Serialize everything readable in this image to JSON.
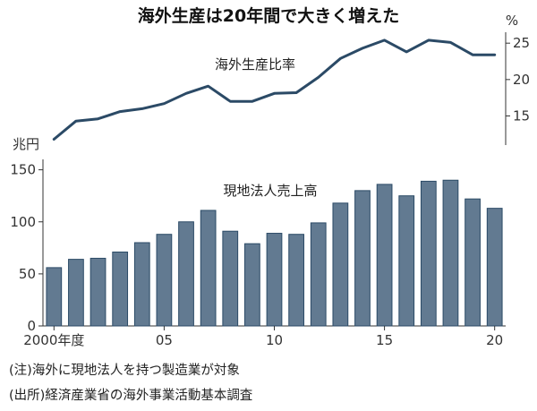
{
  "chart_data": [
    {
      "type": "line",
      "title": "海外生産は20年間で大きく増えた",
      "series_label": "海外生産比率",
      "unit": "%",
      "ylim": [
        11,
        26.5
      ],
      "yticks": [
        15,
        20,
        25
      ],
      "x": [
        2000,
        2001,
        2002,
        2003,
        2004,
        2005,
        2006,
        2007,
        2008,
        2009,
        2010,
        2011,
        2012,
        2013,
        2014,
        2015,
        2016,
        2017,
        2018,
        2019,
        2020
      ],
      "values": [
        11.8,
        14.3,
        14.6,
        15.6,
        16.0,
        16.7,
        18.1,
        19.1,
        17.0,
        17.0,
        18.1,
        18.2,
        20.3,
        22.9,
        24.3,
        25.4,
        23.8,
        25.4,
        25.1,
        23.4,
        23.4
      ],
      "color": "#2b4a66"
    },
    {
      "type": "bar",
      "series_label": "現地法人売上高",
      "unit": "兆円",
      "ylim": [
        0,
        160
      ],
      "yticks": [
        0,
        50,
        100,
        150
      ],
      "x": [
        2000,
        2001,
        2002,
        2003,
        2004,
        2005,
        2006,
        2007,
        2008,
        2009,
        2010,
        2011,
        2012,
        2013,
        2014,
        2015,
        2016,
        2017,
        2018,
        2019,
        2020
      ],
      "values": [
        56,
        64,
        65,
        71,
        80,
        88,
        100,
        111,
        91,
        79,
        89,
        88,
        99,
        118,
        130,
        136,
        125,
        139,
        140,
        122,
        113
      ],
      "xtick_labels": [
        {
          "x": 2000,
          "label": "2000年度"
        },
        {
          "x": 2005,
          "label": "05"
        },
        {
          "x": 2010,
          "label": "10"
        },
        {
          "x": 2015,
          "label": "15"
        },
        {
          "x": 2020,
          "label": "20"
        }
      ],
      "color": "#627a91",
      "edge_color": "#2b4a66"
    }
  ],
  "notes": [
    "(注)海外に現地法人を持つ製造業が対象",
    "(出所)経済産業省の海外事業活動基本調査"
  ]
}
